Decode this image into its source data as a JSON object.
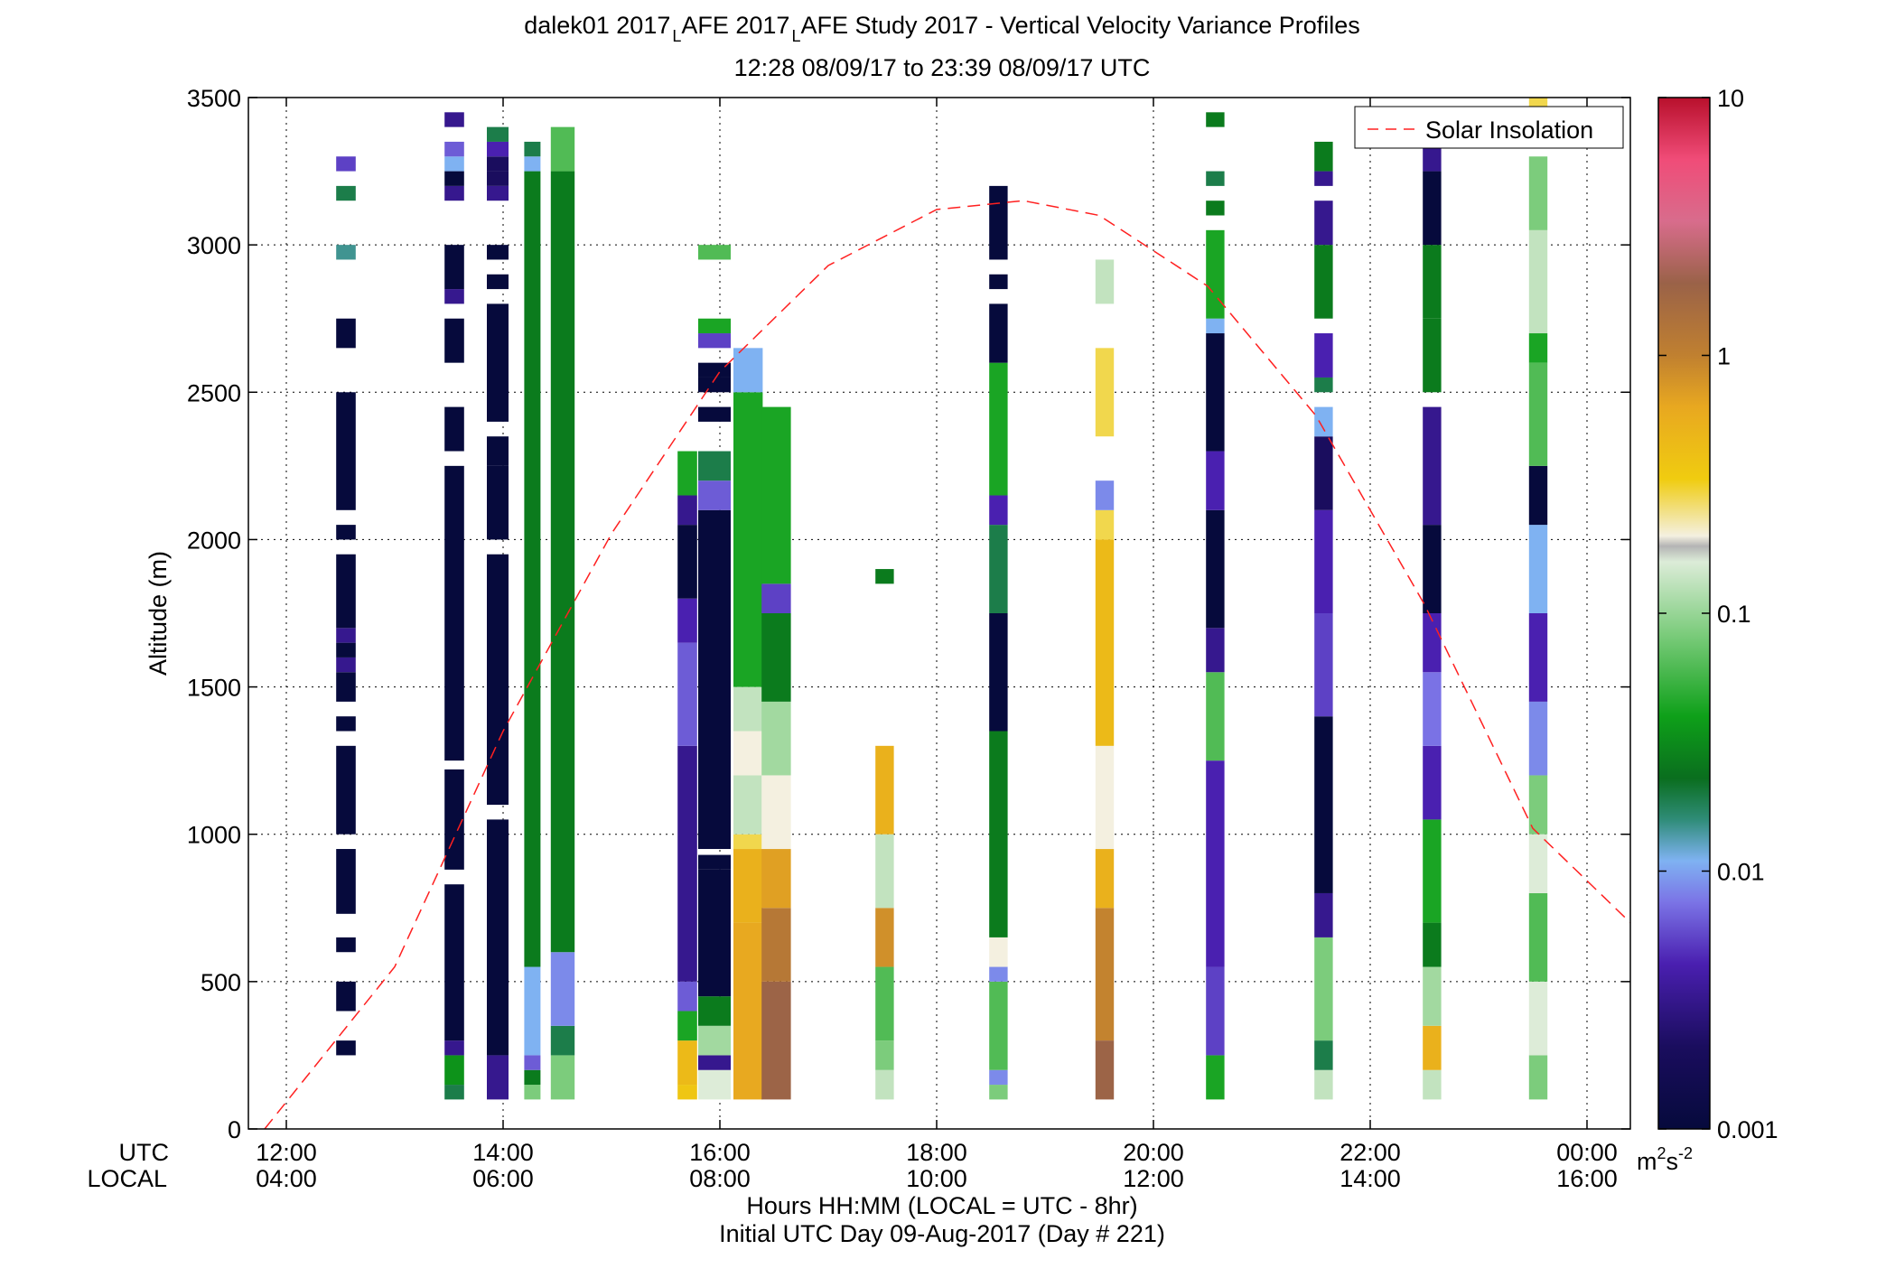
{
  "title": {
    "main": "dalek01 2017",
    "sub1": "L",
    "mid": "AFE 2017",
    "sub2": "L",
    "rest": "AFE Study 2017 - Vertical Velocity Variance Profiles",
    "line2": "12:28 08/09/17 to 23:39 08/09/17  UTC"
  },
  "axes": {
    "ylabel": "Altitude (m)",
    "xlabel": "Hours HH:MM  (LOCAL = UTC - 8hr)",
    "xlabel2": "Initial UTC Day 09-Aug-2017 (Day # 221)",
    "utc_label": "UTC",
    "local_label": "LOCAL",
    "y_ticks": [
      "0",
      "500",
      "1000",
      "1500",
      "2000",
      "2500",
      "3000",
      "3500"
    ],
    "x_ticks_utc": [
      "12:00",
      "14:00",
      "16:00",
      "18:00",
      "20:00",
      "22:00",
      "00:00"
    ],
    "x_ticks_local": [
      "04:00",
      "06:00",
      "08:00",
      "10:00",
      "12:00",
      "14:00",
      "16:00"
    ]
  },
  "colorbar": {
    "ticks": [
      "10",
      "1",
      "0.1",
      "0.01",
      "0.001"
    ],
    "unit_base": "m",
    "unit_exp1": "2",
    "unit_mid": "s",
    "unit_exp2": "-2"
  },
  "legend": {
    "solar": "Solar Insolation"
  },
  "chart_data": {
    "type": "heatmap",
    "x_unit": "hours UTC",
    "xlim": [
      11.65,
      24.4
    ],
    "ylim": [
      0,
      3500
    ],
    "grid": true,
    "legend_position": "top-right",
    "color_scale": "log",
    "color_range": [
      0.001,
      10
    ],
    "solar_curve": {
      "x": [
        11.8,
        13.0,
        14.0,
        15.0,
        16.0,
        17.0,
        18.0,
        18.8,
        19.5,
        20.5,
        21.5,
        22.5,
        23.5,
        24.4
      ],
      "y": [
        0,
        550,
        1350,
        2020,
        2570,
        2930,
        3120,
        3150,
        3100,
        2860,
        2420,
        1780,
        1020,
        700
      ]
    },
    "columns": [
      {
        "x": 12.55,
        "w": 0.18,
        "segs": [
          [
            250,
            300,
            0.001
          ],
          [
            400,
            500,
            0.001
          ],
          [
            600,
            650,
            0.001
          ],
          [
            730,
            950,
            0.001
          ],
          [
            1000,
            1300,
            0.001
          ],
          [
            1350,
            1400,
            0.001
          ],
          [
            1450,
            1550,
            0.001
          ],
          [
            1550,
            1600,
            0.003
          ],
          [
            1600,
            1650,
            0.001
          ],
          [
            1650,
            1700,
            0.003
          ],
          [
            1700,
            1950,
            0.001
          ],
          [
            2000,
            2050,
            0.001
          ],
          [
            2100,
            2500,
            0.001
          ],
          [
            2650,
            2750,
            0.001
          ],
          [
            2950,
            3000,
            0.012
          ],
          [
            3150,
            3200,
            0.015
          ],
          [
            3250,
            3300,
            0.005
          ]
        ]
      },
      {
        "x": 13.55,
        "w": 0.18,
        "segs": [
          [
            100,
            150,
            0.015
          ],
          [
            150,
            250,
            0.025
          ],
          [
            250,
            300,
            0.003
          ],
          [
            300,
            830,
            0.001
          ],
          [
            880,
            1220,
            0.001
          ],
          [
            1250,
            1750,
            0.001
          ],
          [
            1750,
            2250,
            0.001
          ],
          [
            2300,
            2450,
            0.001
          ],
          [
            2600,
            2750,
            0.001
          ],
          [
            2800,
            2850,
            0.003
          ],
          [
            2850,
            3000,
            0.001
          ],
          [
            3150,
            3200,
            0.003
          ],
          [
            3200,
            3250,
            0.001
          ],
          [
            3250,
            3300,
            0.01
          ],
          [
            3300,
            3350,
            0.006
          ],
          [
            3400,
            3450,
            0.003
          ]
        ]
      },
      {
        "x": 13.95,
        "w": 0.2,
        "segs": [
          [
            100,
            250,
            0.003
          ],
          [
            250,
            1050,
            0.001
          ],
          [
            1100,
            1950,
            0.001
          ],
          [
            2000,
            2250,
            0.001
          ],
          [
            2250,
            2350,
            0.001
          ],
          [
            2400,
            2800,
            0.001
          ],
          [
            2850,
            2900,
            0.001
          ],
          [
            2950,
            3000,
            0.001
          ],
          [
            3150,
            3200,
            0.003
          ],
          [
            3200,
            3250,
            0.002
          ],
          [
            3250,
            3300,
            0.002
          ],
          [
            3300,
            3350,
            0.004
          ],
          [
            3350,
            3400,
            0.015
          ]
        ]
      },
      {
        "x": 14.27,
        "w": 0.15,
        "segs": [
          [
            100,
            150,
            0.05
          ],
          [
            150,
            200,
            0.02
          ],
          [
            200,
            250,
            0.006
          ],
          [
            250,
            550,
            0.01
          ],
          [
            550,
            3250,
            0.02
          ],
          [
            3250,
            3300,
            0.01
          ],
          [
            3300,
            3350,
            0.015
          ]
        ]
      },
      {
        "x": 14.55,
        "w": 0.22,
        "segs": [
          [
            100,
            250,
            0.05
          ],
          [
            250,
            350,
            0.015
          ],
          [
            350,
            600,
            0.008
          ],
          [
            600,
            3250,
            0.02
          ],
          [
            3250,
            3400,
            0.04
          ]
        ]
      },
      {
        "x": 15.7,
        "w": 0.18,
        "segs": [
          [
            100,
            150,
            0.2
          ],
          [
            150,
            300,
            0.25
          ],
          [
            300,
            400,
            0.03
          ],
          [
            400,
            500,
            0.006
          ],
          [
            500,
            1300,
            0.003
          ],
          [
            1300,
            1650,
            0.006
          ],
          [
            1650,
            1800,
            0.004
          ],
          [
            1800,
            2050,
            0.001
          ],
          [
            2050,
            2150,
            0.003
          ],
          [
            2150,
            2300,
            0.03
          ]
        ]
      },
      {
        "x": 15.95,
        "w": 0.3,
        "segs": [
          [
            100,
            200,
            0.08
          ],
          [
            200,
            250,
            0.003
          ],
          [
            250,
            350,
            0.06
          ],
          [
            350,
            450,
            0.02
          ],
          [
            450,
            880,
            0.001
          ],
          [
            880,
            930,
            0.001
          ],
          [
            950,
            2100,
            0.001
          ],
          [
            2100,
            2200,
            0.006
          ],
          [
            2200,
            2300,
            0.015
          ],
          [
            2400,
            2450,
            0.001
          ],
          [
            2500,
            2550,
            0.001
          ],
          [
            2550,
            2600,
            0.001
          ],
          [
            2650,
            2700,
            0.005
          ],
          [
            2700,
            2750,
            0.03
          ],
          [
            2950,
            3000,
            0.04
          ]
        ]
      },
      {
        "x": 16.26,
        "w": 0.27,
        "segs": [
          [
            100,
            700,
            0.35
          ],
          [
            700,
            950,
            0.3
          ],
          [
            950,
            1000,
            0.15
          ],
          [
            1000,
            1200,
            0.07
          ],
          [
            1200,
            1350,
            0.1
          ],
          [
            1350,
            1500,
            0.07
          ],
          [
            1500,
            2500,
            0.03
          ],
          [
            2500,
            2650,
            0.01
          ]
        ]
      },
      {
        "x": 16.52,
        "w": 0.27,
        "segs": [
          [
            100,
            500,
            1.5
          ],
          [
            500,
            750,
            0.8
          ],
          [
            750,
            950,
            0.4
          ],
          [
            950,
            1200,
            0.1
          ],
          [
            1200,
            1450,
            0.06
          ],
          [
            1450,
            1750,
            0.02
          ],
          [
            1750,
            1850,
            0.005
          ],
          [
            1850,
            2450,
            0.03
          ]
        ]
      },
      {
        "x": 17.52,
        "w": 0.17,
        "segs": [
          [
            100,
            200,
            0.07
          ],
          [
            200,
            300,
            0.05
          ],
          [
            300,
            550,
            0.04
          ],
          [
            550,
            750,
            0.5
          ],
          [
            750,
            1000,
            0.07
          ],
          [
            1000,
            1300,
            0.3
          ],
          [
            1850,
            1900,
            0.02
          ]
        ]
      },
      {
        "x": 18.57,
        "w": 0.17,
        "segs": [
          [
            100,
            150,
            0.05
          ],
          [
            150,
            200,
            0.008
          ],
          [
            200,
            500,
            0.04
          ],
          [
            500,
            550,
            0.008
          ],
          [
            550,
            650,
            0.1
          ],
          [
            650,
            1350,
            0.02
          ],
          [
            1350,
            1750,
            0.001
          ],
          [
            1750,
            2050,
            0.015
          ],
          [
            2050,
            2150,
            0.004
          ],
          [
            2150,
            2600,
            0.03
          ],
          [
            2600,
            2800,
            0.001
          ],
          [
            2850,
            2900,
            0.001
          ],
          [
            2950,
            3200,
            0.001
          ]
        ]
      },
      {
        "x": 19.55,
        "w": 0.17,
        "segs": [
          [
            100,
            300,
            1.5
          ],
          [
            300,
            750,
            0.6
          ],
          [
            750,
            950,
            0.3
          ],
          [
            950,
            1300,
            0.1
          ],
          [
            1300,
            2000,
            0.25
          ],
          [
            2000,
            2100,
            0.15
          ],
          [
            2100,
            2200,
            0.008
          ],
          [
            2350,
            2650,
            0.15
          ],
          [
            2800,
            2950,
            0.07
          ]
        ]
      },
      {
        "x": 20.57,
        "w": 0.17,
        "segs": [
          [
            100,
            250,
            0.03
          ],
          [
            250,
            550,
            0.005
          ],
          [
            550,
            1250,
            0.004
          ],
          [
            1250,
            1550,
            0.04
          ],
          [
            1550,
            1700,
            0.003
          ],
          [
            1700,
            2100,
            0.001
          ],
          [
            2100,
            2300,
            0.004
          ],
          [
            2300,
            2700,
            0.001
          ],
          [
            2700,
            2750,
            0.01
          ],
          [
            2750,
            3050,
            0.03
          ],
          [
            3100,
            3150,
            0.02
          ],
          [
            3200,
            3250,
            0.015
          ],
          [
            3400,
            3450,
            0.02
          ]
        ]
      },
      {
        "x": 21.57,
        "w": 0.17,
        "segs": [
          [
            100,
            200,
            0.07
          ],
          [
            200,
            300,
            0.015
          ],
          [
            300,
            650,
            0.05
          ],
          [
            650,
            800,
            0.003
          ],
          [
            800,
            1400,
            0.001
          ],
          [
            1400,
            1750,
            0.005
          ],
          [
            1750,
            2100,
            0.004
          ],
          [
            2100,
            2350,
            0.002
          ],
          [
            2350,
            2450,
            0.01
          ],
          [
            2500,
            2550,
            0.015
          ],
          [
            2550,
            2700,
            0.004
          ],
          [
            2750,
            3000,
            0.02
          ],
          [
            3000,
            3150,
            0.003
          ],
          [
            3200,
            3250,
            0.003
          ],
          [
            3250,
            3350,
            0.02
          ]
        ]
      },
      {
        "x": 22.57,
        "w": 0.17,
        "segs": [
          [
            100,
            200,
            0.07
          ],
          [
            200,
            350,
            0.3
          ],
          [
            350,
            550,
            0.06
          ],
          [
            550,
            700,
            0.02
          ],
          [
            700,
            1050,
            0.03
          ],
          [
            1050,
            1300,
            0.004
          ],
          [
            1300,
            1550,
            0.007
          ],
          [
            1550,
            1750,
            0.004
          ],
          [
            1750,
            2050,
            0.001
          ],
          [
            2050,
            2450,
            0.003
          ],
          [
            2500,
            2750,
            0.02
          ],
          [
            2750,
            3000,
            0.02
          ],
          [
            3000,
            3250,
            0.001
          ],
          [
            3250,
            3450,
            0.003
          ]
        ]
      },
      {
        "x": 23.55,
        "w": 0.17,
        "segs": [
          [
            100,
            250,
            0.05
          ],
          [
            250,
            500,
            0.08
          ],
          [
            500,
            800,
            0.04
          ],
          [
            800,
            1000,
            0.08
          ],
          [
            1000,
            1200,
            0.05
          ],
          [
            1200,
            1450,
            0.008
          ],
          [
            1450,
            1750,
            0.004
          ],
          [
            1750,
            2050,
            0.01
          ],
          [
            2050,
            2250,
            0.001
          ],
          [
            2250,
            2600,
            0.04
          ],
          [
            2600,
            2700,
            0.03
          ],
          [
            2700,
            3050,
            0.07
          ],
          [
            3050,
            3300,
            0.05
          ],
          [
            3350,
            3500,
            0.15
          ]
        ]
      }
    ]
  }
}
